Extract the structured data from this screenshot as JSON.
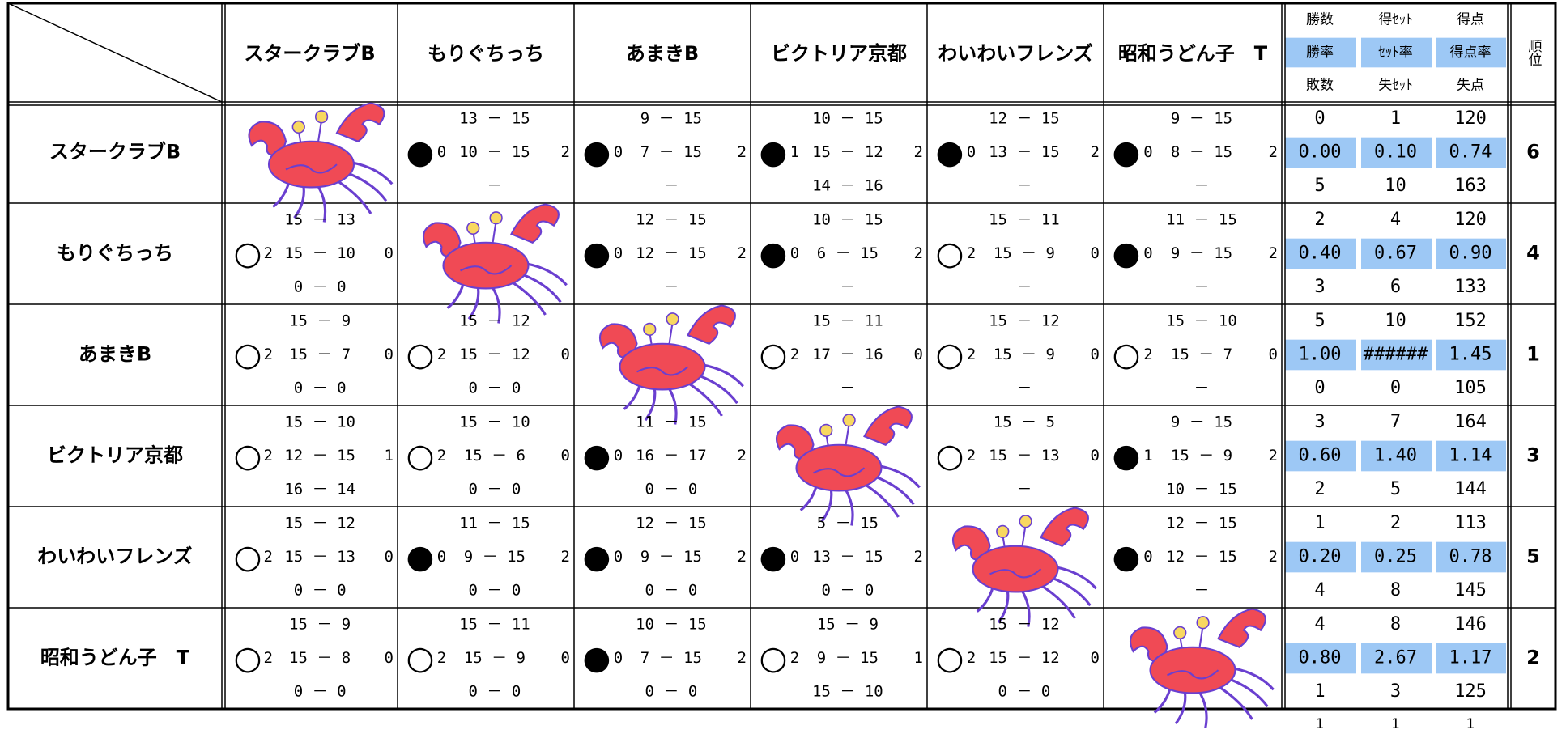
{
  "header": {
    "teams": [
      "スタークラブB",
      "もりぐちっち",
      "あまきB",
      "ビクトリア京都",
      "わいわいフレンズ",
      "昭和うどん子　T"
    ],
    "stat_labels": [
      [
        "勝数",
        "得ｾｯﾄ",
        "得点"
      ],
      [
        "勝率",
        "ｾｯﾄ率",
        "得点率"
      ],
      [
        "敗数",
        "失ｾｯﾄ",
        "失点"
      ]
    ],
    "rank_label": "順位"
  },
  "rows": [
    {
      "cells": [
        null,
        {
          "result": "●",
          "sets": [
            "13 － 15",
            "10 － 15",
            "－"
          ],
          "won": "0",
          "lost": "2"
        },
        {
          "result": "●",
          "sets": [
            "9 － 15",
            "7 － 15",
            "－"
          ],
          "won": "0",
          "lost": "2"
        },
        {
          "result": "●",
          "sets": [
            "10 － 15",
            "15 － 12",
            "14 － 16"
          ],
          "won": "1",
          "lost": "2"
        },
        {
          "result": "●",
          "sets": [
            "12 － 15",
            "13 － 15",
            "－"
          ],
          "won": "0",
          "lost": "2"
        },
        {
          "result": "●",
          "sets": [
            "9 － 15",
            "8 － 15",
            "－"
          ],
          "won": "0",
          "lost": "2"
        }
      ],
      "stats": [
        [
          "0",
          "1",
          "120"
        ],
        [
          "0.00",
          "0.10",
          "0.74"
        ],
        [
          "5",
          "10",
          "163"
        ]
      ],
      "rank": "6"
    },
    {
      "cells": [
        {
          "result": "○",
          "sets": [
            "15 － 13",
            "15 － 10",
            "0 － 0"
          ],
          "won": "2",
          "lost": "0"
        },
        null,
        {
          "result": "●",
          "sets": [
            "12 － 15",
            "12 － 15",
            "－"
          ],
          "won": "0",
          "lost": "2"
        },
        {
          "result": "●",
          "sets": [
            "10 － 15",
            "6 － 15",
            "－"
          ],
          "won": "0",
          "lost": "2"
        },
        {
          "result": "○",
          "sets": [
            "15 － 11",
            "15 － 9",
            "－"
          ],
          "won": "2",
          "lost": "0"
        },
        {
          "result": "●",
          "sets": [
            "11 － 15",
            "9 － 15",
            "－"
          ],
          "won": "0",
          "lost": "2"
        }
      ],
      "stats": [
        [
          "2",
          "4",
          "120"
        ],
        [
          "0.40",
          "0.67",
          "0.90"
        ],
        [
          "3",
          "6",
          "133"
        ]
      ],
      "rank": "4"
    },
    {
      "cells": [
        {
          "result": "○",
          "sets": [
            "15 － 9",
            "15 － 7",
            "0 － 0"
          ],
          "won": "2",
          "lost": "0"
        },
        {
          "result": "○",
          "sets": [
            "15 － 12",
            "15 － 12",
            "0 － 0"
          ],
          "won": "2",
          "lost": "0"
        },
        null,
        {
          "result": "○",
          "sets": [
            "15 － 11",
            "17 － 16",
            "－"
          ],
          "won": "2",
          "lost": "0"
        },
        {
          "result": "○",
          "sets": [
            "15 － 12",
            "15 － 9",
            "－"
          ],
          "won": "2",
          "lost": "0"
        },
        {
          "result": "○",
          "sets": [
            "15 － 10",
            "15 － 7",
            "－"
          ],
          "won": "2",
          "lost": "0"
        }
      ],
      "stats": [
        [
          "5",
          "10",
          "152"
        ],
        [
          "1.00",
          "######",
          "1.45"
        ],
        [
          "0",
          "0",
          "105"
        ]
      ],
      "rank": "1"
    },
    {
      "cells": [
        {
          "result": "○",
          "sets": [
            "15 － 10",
            "12 － 15",
            "16 － 14"
          ],
          "won": "2",
          "lost": "1"
        },
        {
          "result": "○",
          "sets": [
            "15 － 10",
            "15 － 6",
            "0 － 0"
          ],
          "won": "2",
          "lost": "0"
        },
        {
          "result": "●",
          "sets": [
            "11 － 15",
            "16 － 17",
            "0 － 0"
          ],
          "won": "0",
          "lost": "2"
        },
        null,
        {
          "result": "○",
          "sets": [
            "15 － 5",
            "15 － 13",
            "－"
          ],
          "won": "2",
          "lost": "0"
        },
        {
          "result": "●",
          "sets": [
            "9 － 15",
            "15 － 9",
            "10 － 15"
          ],
          "won": "1",
          "lost": "2"
        }
      ],
      "stats": [
        [
          "3",
          "7",
          "164"
        ],
        [
          "0.60",
          "1.40",
          "1.14"
        ],
        [
          "2",
          "5",
          "144"
        ]
      ],
      "rank": "3"
    },
    {
      "cells": [
        {
          "result": "○",
          "sets": [
            "15 － 12",
            "15 － 13",
            "0 － 0"
          ],
          "won": "2",
          "lost": "0"
        },
        {
          "result": "●",
          "sets": [
            "11 － 15",
            "9 － 15",
            "0 － 0"
          ],
          "won": "0",
          "lost": "2"
        },
        {
          "result": "●",
          "sets": [
            "12 － 15",
            "9 － 15",
            "0 － 0"
          ],
          "won": "0",
          "lost": "2"
        },
        {
          "result": "●",
          "sets": [
            "5 － 15",
            "13 － 15",
            "0 － 0"
          ],
          "won": "0",
          "lost": "2"
        },
        null,
        {
          "result": "●",
          "sets": [
            "12 － 15",
            "12 － 15",
            "－"
          ],
          "won": "0",
          "lost": "2"
        }
      ],
      "stats": [
        [
          "1",
          "2",
          "113"
        ],
        [
          "0.20",
          "0.25",
          "0.78"
        ],
        [
          "4",
          "8",
          "145"
        ]
      ],
      "rank": "5"
    },
    {
      "cells": [
        {
          "result": "○",
          "sets": [
            "15 － 9",
            "15 － 8",
            "0 － 0"
          ],
          "won": "2",
          "lost": "0"
        },
        {
          "result": "○",
          "sets": [
            "15 － 11",
            "15 － 9",
            "0 － 0"
          ],
          "won": "2",
          "lost": "0"
        },
        {
          "result": "●",
          "sets": [
            "10 － 15",
            "7 － 15",
            "0 － 0"
          ],
          "won": "0",
          "lost": "2"
        },
        {
          "result": "○",
          "sets": [
            "15 － 9",
            "9 － 15",
            "15 － 10"
          ],
          "won": "2",
          "lost": "1"
        },
        {
          "result": "○",
          "sets": [
            "15 － 12",
            "15 － 12",
            "0 － 0"
          ],
          "won": "2",
          "lost": "0"
        },
        null
      ],
      "stats": [
        [
          "4",
          "8",
          "146"
        ],
        [
          "0.80",
          "2.67",
          "1.17"
        ],
        [
          "1",
          "3",
          "125"
        ]
      ],
      "rank": "2"
    }
  ],
  "footer": [
    "1",
    "1",
    "1"
  ]
}
